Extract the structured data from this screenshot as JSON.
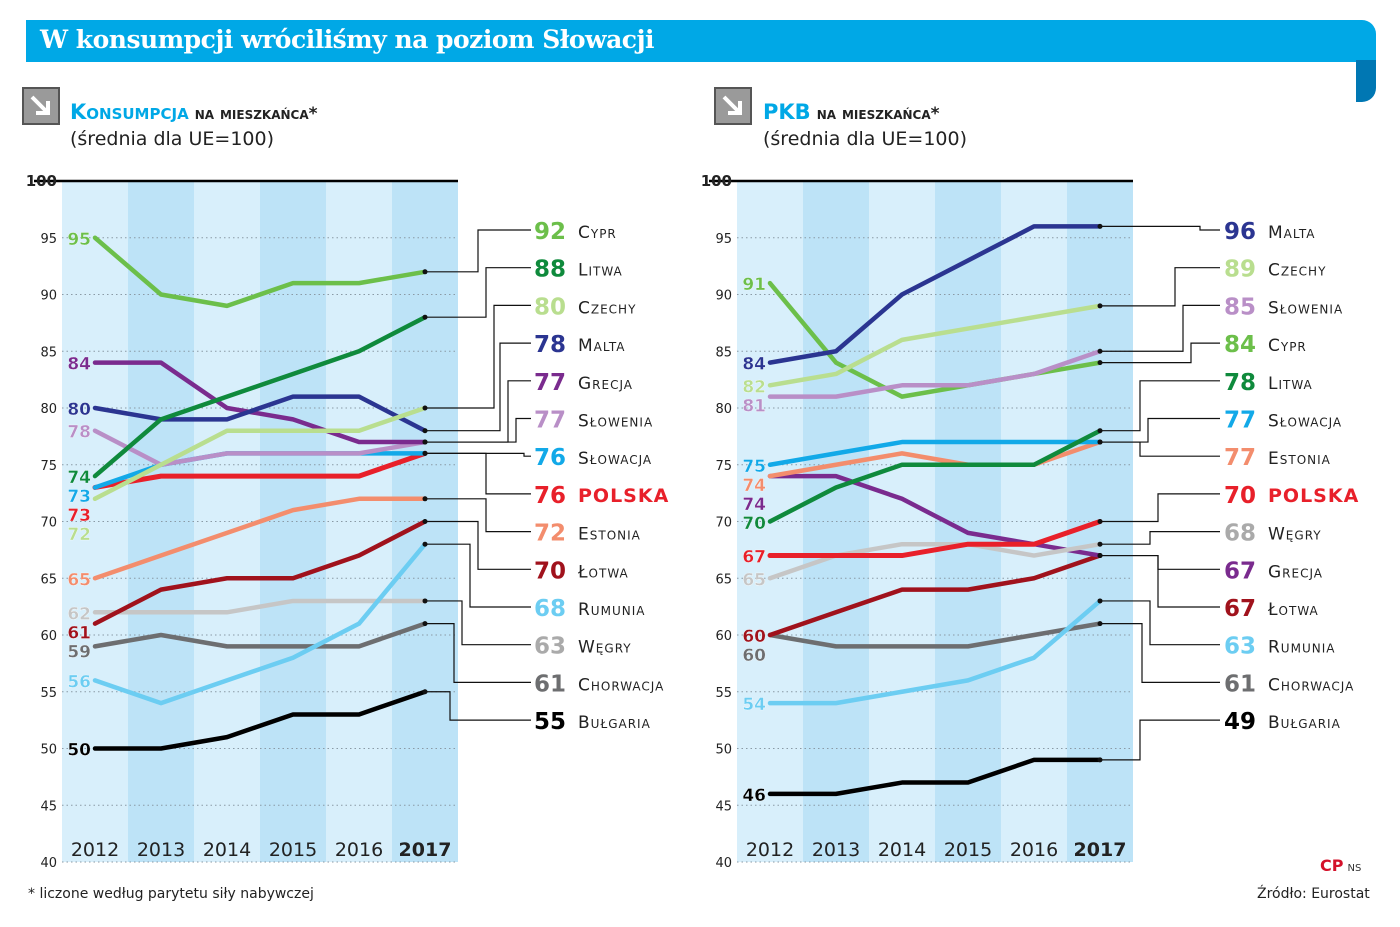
{
  "title": "W konsumpcji wróciliśmy na poziom Słowacji",
  "footnote": "* liczone według parytetu siły nabywczej",
  "source": "Źródło: Eurostat",
  "logo": "CP",
  "logo_suffix": "NS",
  "colors": {
    "banner": "#00a8e6",
    "stripe_light": "#d8effb",
    "stripe_dark": "#bde3f7"
  },
  "chart_data": [
    {
      "type": "line",
      "title_main": "Konsumpcja",
      "title_rest": "na mieszkańca*",
      "subtitle": "(średnia dla UE=100)",
      "x": [
        "2012",
        "2013",
        "2014",
        "2015",
        "2016",
        "2017"
      ],
      "ylim": [
        40,
        100
      ],
      "yticks": [
        40,
        45,
        50,
        55,
        60,
        65,
        70,
        75,
        80,
        85,
        90,
        95,
        100
      ],
      "series": [
        {
          "name": "Cypr",
          "color": "#6cbf4a",
          "values": [
            95,
            90,
            89,
            91,
            91,
            92
          ]
        },
        {
          "name": "Litwa",
          "color": "#0f8a3c",
          "values": [
            74,
            79,
            81,
            83,
            85,
            88
          ]
        },
        {
          "name": "Czechy",
          "color": "#b9de8f",
          "values": [
            72,
            75,
            78,
            78,
            78,
            80
          ]
        },
        {
          "name": "Malta",
          "color": "#2b3591",
          "values": [
            80,
            79,
            79,
            81,
            81,
            78
          ]
        },
        {
          "name": "Grecja",
          "color": "#7a2b8e",
          "values": [
            84,
            84,
            80,
            79,
            77,
            77
          ]
        },
        {
          "name": "Słowenia",
          "color": "#b98fc7",
          "values": [
            78,
            75,
            76,
            76,
            76,
            77
          ]
        },
        {
          "name": "Słowacja",
          "color": "#12a9e8",
          "values": [
            73,
            75,
            76,
            76,
            76,
            76
          ]
        },
        {
          "name": "Polska",
          "color": "#e8202a",
          "values": [
            73,
            74,
            74,
            74,
            74,
            76
          ],
          "highlight": true
        },
        {
          "name": "Estonia",
          "color": "#f38d6d",
          "values": [
            65,
            67,
            69,
            71,
            72,
            72
          ]
        },
        {
          "name": "Łotwa",
          "color": "#a0121c",
          "values": [
            61,
            64,
            65,
            65,
            67,
            70
          ]
        },
        {
          "name": "Rumunia",
          "color": "#6ccdf2",
          "values": [
            56,
            54,
            56,
            58,
            61,
            68
          ]
        },
        {
          "name": "Węgry",
          "color": "#c6c6c6",
          "values": [
            62,
            62,
            62,
            63,
            63,
            63
          ]
        },
        {
          "name": "Chorwacja",
          "color": "#6d6e70",
          "values": [
            59,
            60,
            59,
            59,
            59,
            61
          ]
        },
        {
          "name": "Bułgaria",
          "color": "#000000",
          "values": [
            50,
            50,
            51,
            53,
            53,
            55
          ]
        }
      ]
    },
    {
      "type": "line",
      "title_main": "PKB",
      "title_rest": "na mieszkańca*",
      "subtitle": "(średnia dla UE=100)",
      "x": [
        "2012",
        "2013",
        "2014",
        "2015",
        "2016",
        "2017"
      ],
      "ylim": [
        40,
        100
      ],
      "yticks": [
        40,
        45,
        50,
        55,
        60,
        65,
        70,
        75,
        80,
        85,
        90,
        95,
        100
      ],
      "series": [
        {
          "name": "Malta",
          "color": "#2b3591",
          "values": [
            84,
            85,
            90,
            93,
            96,
            96
          ]
        },
        {
          "name": "Czechy",
          "color": "#b9de8f",
          "values": [
            82,
            83,
            86,
            87,
            88,
            89
          ]
        },
        {
          "name": "Słowenia",
          "color": "#b98fc7",
          "values": [
            81,
            81,
            82,
            82,
            83,
            85
          ]
        },
        {
          "name": "Cypr",
          "color": "#6cbf4a",
          "values": [
            91,
            84,
            81,
            82,
            83,
            84
          ]
        },
        {
          "name": "Litwa",
          "color": "#0f8a3c",
          "values": [
            70,
            73,
            75,
            75,
            75,
            78
          ]
        },
        {
          "name": "Słowacja",
          "color": "#12a9e8",
          "values": [
            75,
            76,
            77,
            77,
            77,
            77
          ]
        },
        {
          "name": "Estonia",
          "color": "#f38d6d",
          "values": [
            74,
            75,
            76,
            75,
            75,
            77
          ]
        },
        {
          "name": "Polska",
          "color": "#e8202a",
          "values": [
            67,
            67,
            67,
            68,
            68,
            70
          ],
          "highlight": true
        },
        {
          "name": "Węgry",
          "color": "#c6c6c6",
          "values": [
            65,
            67,
            68,
            68,
            67,
            68
          ]
        },
        {
          "name": "Grecja",
          "color": "#7a2b8e",
          "values": [
            74,
            74,
            72,
            69,
            68,
            67
          ]
        },
        {
          "name": "Łotwa",
          "color": "#a0121c",
          "values": [
            60,
            62,
            64,
            64,
            65,
            67
          ]
        },
        {
          "name": "Rumunia",
          "color": "#6ccdf2",
          "values": [
            54,
            54,
            55,
            56,
            58,
            63
          ]
        },
        {
          "name": "Chorwacja",
          "color": "#6d6e70",
          "values": [
            60,
            59,
            59,
            59,
            60,
            61
          ]
        },
        {
          "name": "Bułgaria",
          "color": "#000000",
          "values": [
            46,
            46,
            47,
            47,
            49,
            49
          ]
        }
      ]
    }
  ]
}
